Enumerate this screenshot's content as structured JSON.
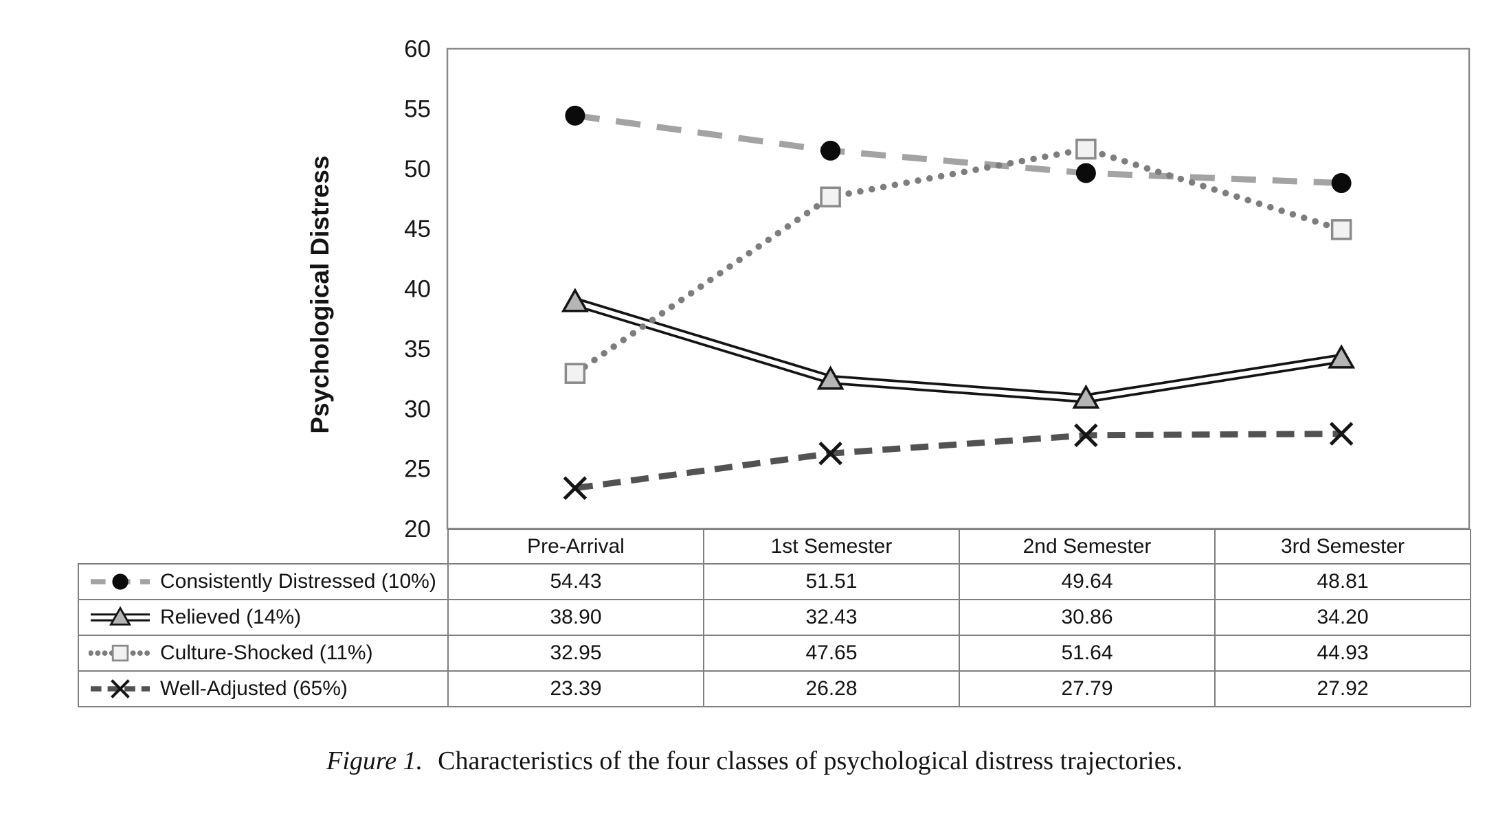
{
  "figure": {
    "caption_label": "Figure 1.",
    "caption_text": "Characteristics of the four classes of psychological distress trajectories."
  },
  "chart_data": {
    "type": "line",
    "title": "",
    "xlabel": "",
    "ylabel": "Psychological Distress",
    "categories": [
      "Pre-Arrival",
      "1st Semester",
      "2nd Semester",
      "3rd Semester"
    ],
    "ylim": [
      20,
      60
    ],
    "yticks": [
      20,
      25,
      30,
      35,
      40,
      45,
      50,
      55,
      60
    ],
    "grid": false,
    "legend_position": "table-left-column",
    "series": [
      {
        "name": "Consistently Distressed (10%)",
        "values": [
          54.43,
          51.51,
          49.64,
          48.81
        ],
        "line": "long-dash",
        "line_color": "#a3a3a3",
        "marker": "circle-filled",
        "marker_fill": "#0b0b0b",
        "marker_stroke": "#0b0b0b"
      },
      {
        "name": "Relieved (14%)",
        "values": [
          38.9,
          32.43,
          30.86,
          34.2
        ],
        "line": "double-solid",
        "line_color": "#141414",
        "marker": "triangle-filled",
        "marker_fill": "#b5b5b5",
        "marker_stroke": "#141414"
      },
      {
        "name": "Culture-Shocked (11%)",
        "values": [
          32.95,
          47.65,
          51.64,
          44.93
        ],
        "line": "dotted",
        "line_color": "#7d7d7d",
        "marker": "square-open",
        "marker_fill": "#f2f2f2",
        "marker_stroke": "#8a8a8a"
      },
      {
        "name": "Well-Adjusted (65%)",
        "values": [
          23.39,
          26.28,
          27.79,
          27.92
        ],
        "line": "dash",
        "line_color": "#525252",
        "marker": "x",
        "marker_fill": "#141414",
        "marker_stroke": "#141414"
      }
    ]
  },
  "table": {
    "headers": [
      "Pre-Arrival",
      "1st Semester",
      "2nd Semester",
      "3rd Semester"
    ],
    "rows": [
      {
        "label": "Consistently Distressed (10%)",
        "values": [
          "54.43",
          "51.51",
          "49.64",
          "48.81"
        ]
      },
      {
        "label": "Relieved (14%)",
        "values": [
          "38.90",
          "32.43",
          "30.86",
          "34.20"
        ]
      },
      {
        "label": "Culture-Shocked (11%)",
        "values": [
          "32.95",
          "47.65",
          "51.64",
          "44.93"
        ]
      },
      {
        "label": "Well-Adjusted (65%)",
        "values": [
          "23.39",
          "26.28",
          "27.79",
          "27.92"
        ]
      }
    ]
  }
}
